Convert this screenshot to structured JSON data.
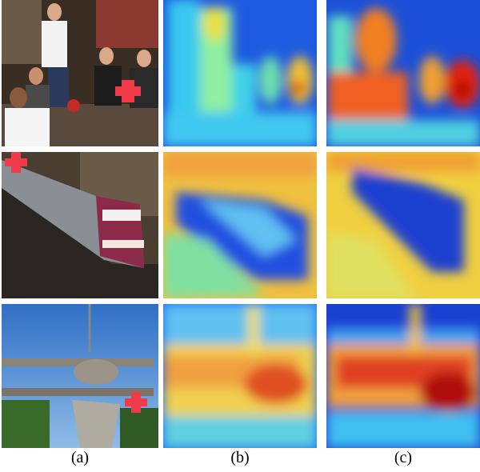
{
  "figure": {
    "captions": [
      "(a)",
      "(b)",
      "(c)"
    ]
  }
}
